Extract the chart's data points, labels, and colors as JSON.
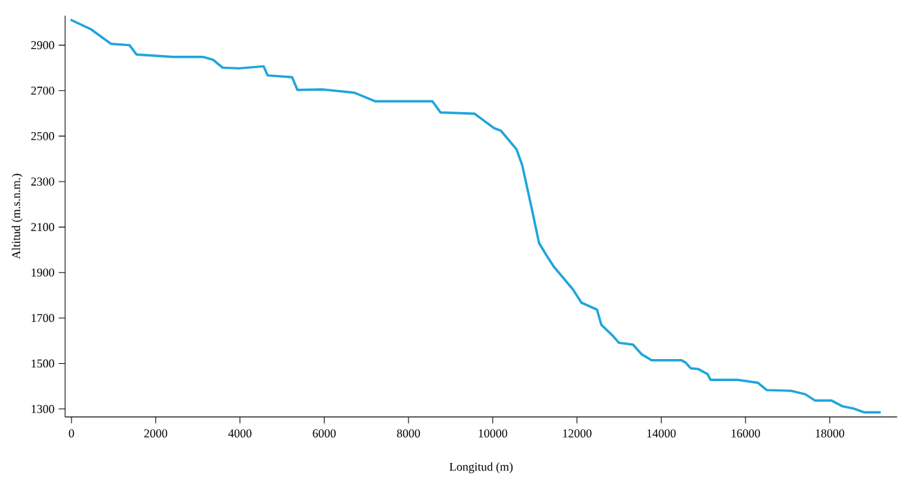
{
  "chart_data": {
    "type": "line",
    "xlabel": "Longitud (m)",
    "ylabel": "Altitud (m.s.n.m.)",
    "x": [
      0,
      462,
      936,
      1377,
      1545,
      2412,
      3131,
      3360,
      3589,
      3981,
      4561,
      4657,
      5237,
      5365,
      5976,
      6714,
      7217,
      8568,
      8761,
      9565,
      10034,
      10192,
      10565,
      10699,
      10939,
      11099,
      11285,
      11445,
      11899,
      12109,
      12474,
      12578,
      12839,
      12995,
      13329,
      13538,
      13772,
      14478,
      14578,
      14701,
      14874,
      15096,
      15170,
      15812,
      16297,
      16505,
      17078,
      17417,
      17652,
      18042,
      18302,
      18563,
      18823,
      19188
    ],
    "series": [
      {
        "color": "#1ea5dc",
        "values": [
          3010,
          2970,
          2906,
          2900,
          2859,
          2848,
          2848,
          2836,
          2801,
          2798,
          2807,
          2767,
          2759,
          2703,
          2705,
          2691,
          2653,
          2653,
          2604,
          2599,
          2535,
          2524,
          2442,
          2373,
          2170,
          2030,
          1973,
          1927,
          1827,
          1767,
          1737,
          1670,
          1624,
          1591,
          1583,
          1540,
          1514,
          1514,
          1504,
          1479,
          1476,
          1454,
          1428,
          1428,
          1415,
          1383,
          1380,
          1365,
          1337,
          1337,
          1312,
          1302,
          1285,
          1285
        ]
      }
    ],
    "xlim": [
      -150,
      19600
    ],
    "ylim": [
      1265,
      3030
    ],
    "xticks": [
      0,
      2000,
      4000,
      6000,
      8000,
      10000,
      12000,
      14000,
      16000,
      18000
    ],
    "yticks": [
      1300,
      1500,
      1700,
      1900,
      2100,
      2300,
      2500,
      2700,
      2900
    ],
    "grid": false,
    "legend": false,
    "marker": "none",
    "line_style": "solid"
  }
}
